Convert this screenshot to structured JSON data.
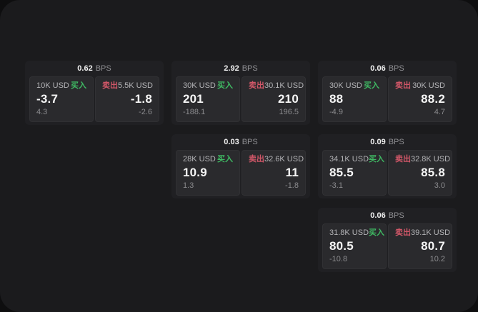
{
  "labels": {
    "bps_unit": "BPS",
    "buy": "买入",
    "sell": "卖出"
  },
  "colors": {
    "buy_green": "#3fb963",
    "sell_red": "#d15768",
    "panel_bg": "#1b1b1d",
    "card_bg": "#202023",
    "tile_bg": "#2a2a2d"
  },
  "cards": [
    {
      "bps": "0.62",
      "buy": {
        "amount": "10K USD",
        "price": "-3.7",
        "delta": "4.3"
      },
      "sell": {
        "amount": "5.5K USD",
        "price": "-1.8",
        "delta": "-2.6"
      }
    },
    {
      "bps": "2.92",
      "buy": {
        "amount": "30K USD",
        "price": "201",
        "delta": "-188.1"
      },
      "sell": {
        "amount": "30.1K USD",
        "price": "210",
        "delta": "196.5"
      }
    },
    {
      "bps": "0.06",
      "buy": {
        "amount": "30K USD",
        "price": "88",
        "delta": "-4.9"
      },
      "sell": {
        "amount": "30K USD",
        "price": "88.2",
        "delta": "4.7"
      }
    },
    {
      "bps": "0.03",
      "buy": {
        "amount": "28K USD",
        "price": "10.9",
        "delta": "1.3"
      },
      "sell": {
        "amount": "32.6K USD",
        "price": "11",
        "delta": "-1.8"
      }
    },
    {
      "bps": "0.09",
      "buy": {
        "amount": "34.1K USD",
        "price": "85.5",
        "delta": "-3.1"
      },
      "sell": {
        "amount": "32.8K USD",
        "price": "85.8",
        "delta": "3.0"
      }
    },
    {
      "bps": "0.06",
      "buy": {
        "amount": "31.8K USD",
        "price": "80.5",
        "delta": "-10.8"
      },
      "sell": {
        "amount": "39.1K USD",
        "price": "80.7",
        "delta": "10.2"
      }
    }
  ]
}
